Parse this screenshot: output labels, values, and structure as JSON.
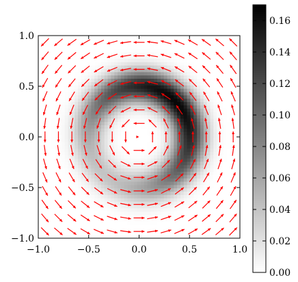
{
  "chart_data": {
    "type": "heatmap",
    "title": "",
    "xlabel": "",
    "ylabel": "",
    "xlim": [
      -1.0,
      1.0
    ],
    "ylim": [
      -1.0,
      1.0
    ],
    "x_ticks": [
      "−1.0",
      "−0.5",
      "0.0",
      "0.5",
      "1.0"
    ],
    "y_ticks": [
      "1.0",
      "0.5",
      "0.0",
      "−0.5",
      "−1.0"
    ],
    "x_tick_values": [
      -1.0,
      -0.5,
      0.0,
      0.5,
      1.0
    ],
    "y_tick_values": [
      1.0,
      0.5,
      0.0,
      -0.5,
      -1.0
    ],
    "heatmap": {
      "description_values": "ring-shaped density centered at origin",
      "ring_radius": 0.5,
      "ring_width": 0.16,
      "peak_value": 0.165,
      "peak_angle_deg": 45,
      "grid": 61
    },
    "colorbar": {
      "range": [
        0.0,
        0.17
      ],
      "ticks": [
        "0.00",
        "0.02",
        "0.04",
        "0.06",
        "0.08",
        "0.10",
        "0.12",
        "0.14",
        "0.16"
      ],
      "tick_values": [
        0.0,
        0.02,
        0.04,
        0.06,
        0.08,
        0.1,
        0.12,
        0.14,
        0.16
      ],
      "colormap": "gray_r"
    },
    "quiver": {
      "color": "#ff0000",
      "grid_count": 15,
      "pattern": "circulating (rotational) field"
    }
  }
}
